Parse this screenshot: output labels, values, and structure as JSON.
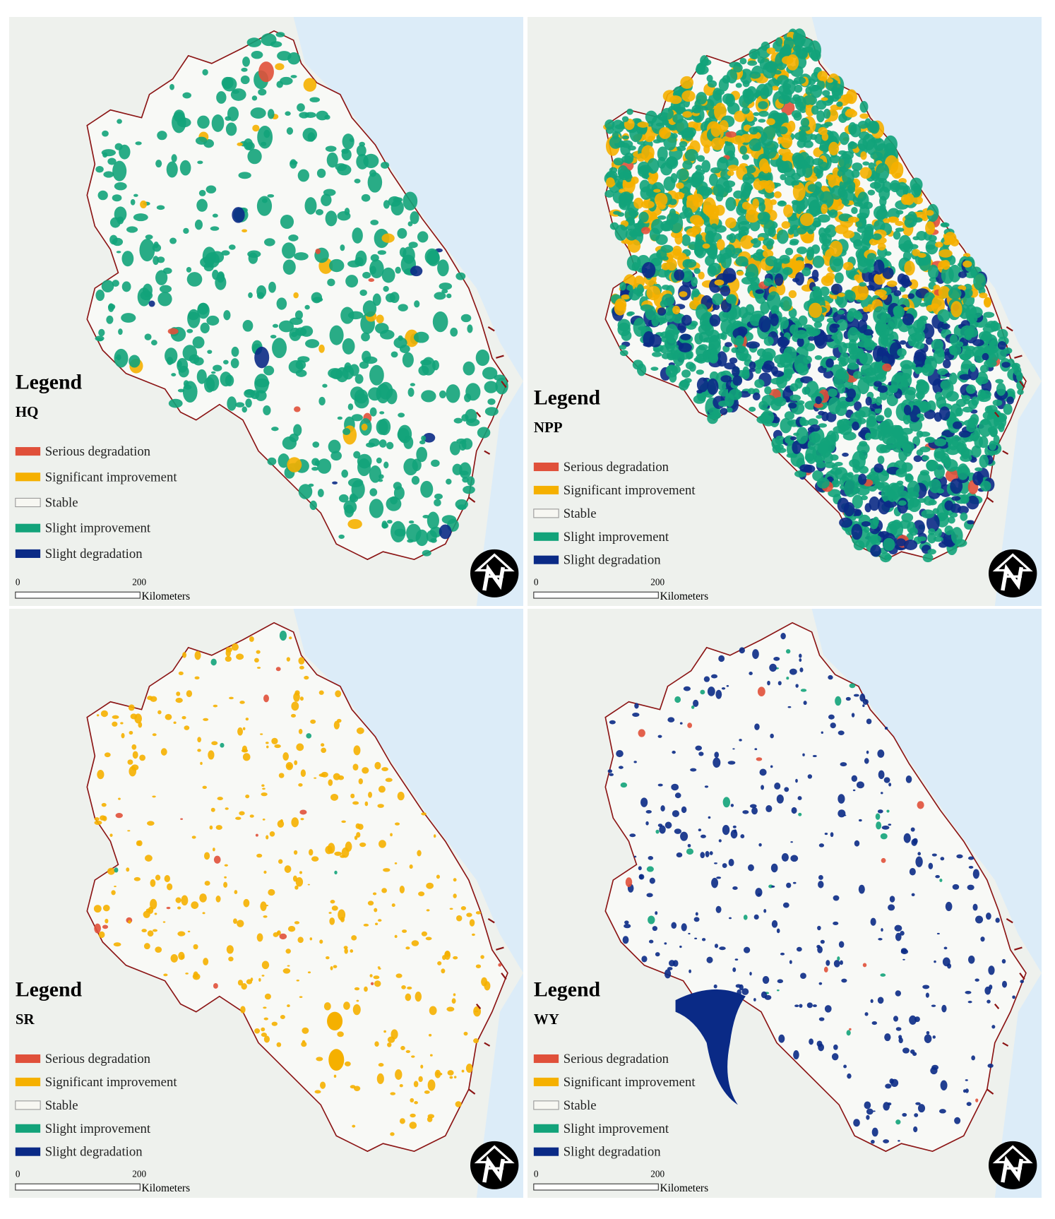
{
  "legend_title": "Legend",
  "legend_items": [
    {
      "label": "Serious degradation",
      "color": "#e0503a"
    },
    {
      "label": "Significant improvement",
      "color": "#f5b000"
    },
    {
      "label": "Stable",
      "color": "#f7f7f2"
    },
    {
      "label": "Slight improvement",
      "color": "#12a37a"
    },
    {
      "label": "Slight degradation",
      "color": "#0a2a86"
    }
  ],
  "scale_bar": {
    "start": "0",
    "end": "200",
    "unit": "Kilometers"
  },
  "panels": [
    {
      "code": "HQ"
    },
    {
      "code": "NPP"
    },
    {
      "code": "SR"
    },
    {
      "code": "WY"
    }
  ]
}
